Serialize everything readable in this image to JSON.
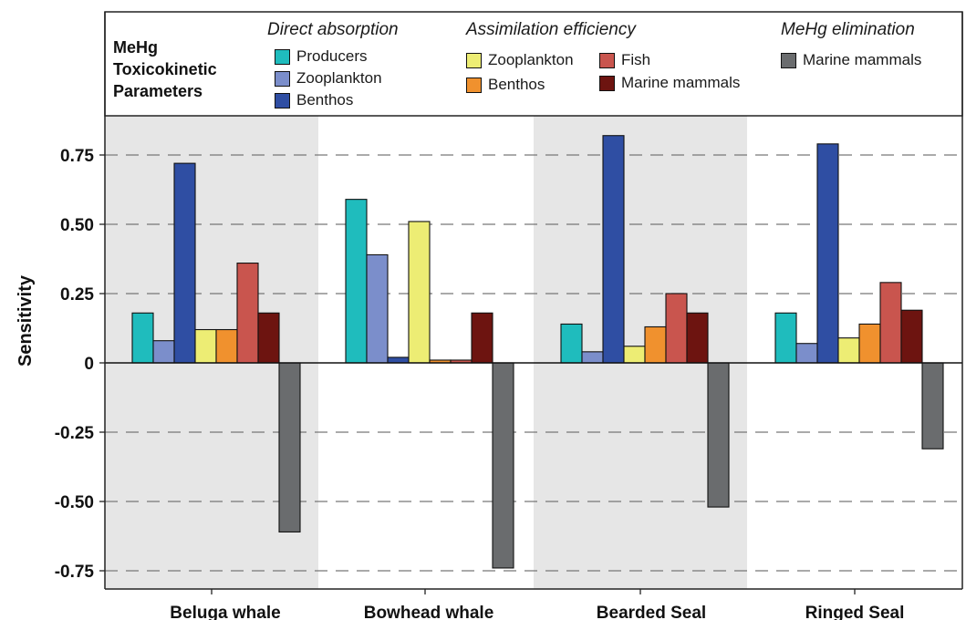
{
  "legend": {
    "title_lines": [
      "MeHg",
      "Toxicokinetic",
      "Parameters"
    ],
    "groups": [
      {
        "title": "Direct absorption",
        "items": [
          {
            "label": "Producers",
            "color": "#1fbcbd"
          },
          {
            "label": "Zooplankton",
            "color": "#7b8ecb"
          },
          {
            "label": "Benthos",
            "color": "#2f4ea3"
          }
        ]
      },
      {
        "title": "Assimilation efficiency",
        "items": [
          {
            "label": "Zooplankton",
            "color": "#eded74"
          },
          {
            "label": "Benthos",
            "color": "#f0912e"
          },
          {
            "label": "Fish",
            "color": "#c9554e"
          },
          {
            "label": "Marine mammals",
            "color": "#6d1410"
          }
        ]
      },
      {
        "title": "MeHg elimination",
        "items": [
          {
            "label": "Marine mammals",
            "color": "#6a6c6e"
          }
        ]
      }
    ]
  },
  "chart_data": {
    "type": "bar",
    "ylabel": "Sensitivity",
    "xlabel": "",
    "ylim": [
      -0.82,
      0.9
    ],
    "yticks": [
      0.75,
      0.5,
      0.25,
      0,
      -0.25,
      -0.5,
      -0.75
    ],
    "ytick_labels": [
      "0.75",
      "0.50",
      "0.25",
      "0",
      "-0.25",
      "-0.50",
      "-0.75"
    ],
    "grid": "dashed horizontal",
    "categories": [
      "Beluga whale",
      "Bowhead whale",
      "Bearded Seal",
      "Ringed Seal"
    ],
    "shaded_categories": [
      0,
      2
    ],
    "series": [
      {
        "group": "Direct absorption",
        "label": "Producers",
        "color": "#1fbcbd",
        "values": [
          0.18,
          0.59,
          0.14,
          0.18
        ]
      },
      {
        "group": "Direct absorption",
        "label": "Zooplankton",
        "color": "#7b8ecb",
        "values": [
          0.08,
          0.39,
          0.04,
          0.07
        ]
      },
      {
        "group": "Direct absorption",
        "label": "Benthos",
        "color": "#2f4ea3",
        "values": [
          0.72,
          0.02,
          0.82,
          0.79
        ]
      },
      {
        "group": "Assimilation efficiency",
        "label": "Zooplankton",
        "color": "#eded74",
        "values": [
          0.12,
          0.51,
          0.06,
          0.09
        ]
      },
      {
        "group": "Assimilation efficiency",
        "label": "Benthos",
        "color": "#f0912e",
        "values": [
          0.12,
          0.01,
          0.13,
          0.14
        ]
      },
      {
        "group": "Assimilation efficiency",
        "label": "Fish",
        "color": "#c9554e",
        "values": [
          0.36,
          0.01,
          0.25,
          0.29
        ]
      },
      {
        "group": "Assimilation efficiency",
        "label": "Marine mammals",
        "color": "#6d1410",
        "values": [
          0.18,
          0.18,
          0.18,
          0.19
        ]
      },
      {
        "group": "MeHg elimination",
        "label": "Marine mammals",
        "color": "#6a6c6e",
        "values": [
          -0.61,
          -0.74,
          -0.52,
          -0.31
        ]
      }
    ]
  }
}
